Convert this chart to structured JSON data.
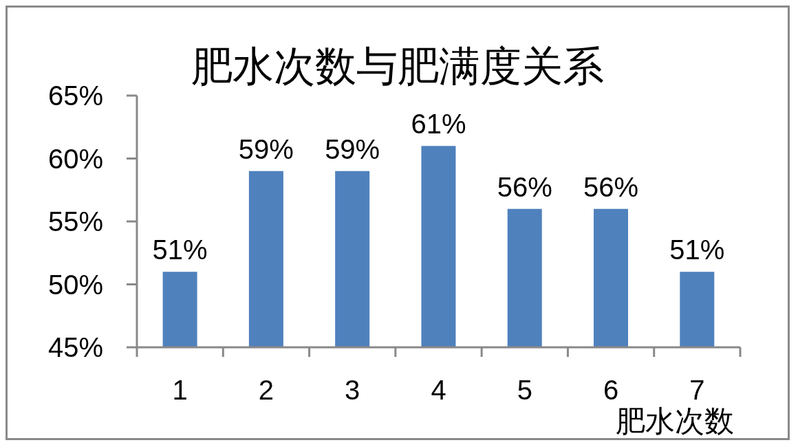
{
  "chart_data": {
    "type": "bar",
    "title": "肥水次数与肥满度关系",
    "xlabel": "肥水次数",
    "categories": [
      "1",
      "2",
      "3",
      "4",
      "5",
      "6",
      "7"
    ],
    "values": [
      51,
      59,
      59,
      61,
      56,
      56,
      51
    ],
    "color": "#4f81bd",
    "value_labels": [
      "51%",
      "59%",
      "59%",
      "61%",
      "56%",
      "56%",
      "51%"
    ],
    "ylim": [
      45,
      65
    ],
    "yticks": [
      {
        "value": 45,
        "label": "45%"
      },
      {
        "value": 50,
        "label": "50%"
      },
      {
        "value": 55,
        "label": "55%"
      },
      {
        "value": 60,
        "label": "60%"
      },
      {
        "value": 65,
        "label": "65%"
      }
    ]
  }
}
